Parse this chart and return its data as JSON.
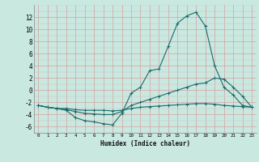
{
  "xlabel": "Humidex (Indice chaleur)",
  "bg_color": "#c8e8e0",
  "line_color": "#1a6b6b",
  "grid_major_color": "#e8b0b0",
  "grid_minor_color": "#e8d0d0",
  "xlim": [
    -0.5,
    23.5
  ],
  "ylim": [
    -7,
    14
  ],
  "yticks": [
    -6,
    -4,
    -2,
    0,
    2,
    4,
    6,
    8,
    10,
    12
  ],
  "xticks": [
    0,
    1,
    2,
    3,
    4,
    5,
    6,
    7,
    8,
    9,
    10,
    11,
    12,
    13,
    14,
    15,
    16,
    17,
    18,
    19,
    20,
    21,
    22,
    23
  ],
  "curve1_x": [
    0,
    1,
    2,
    3,
    4,
    5,
    6,
    7,
    8,
    9,
    10,
    11,
    12,
    13,
    14,
    15,
    16,
    17,
    18,
    19,
    20,
    21,
    22,
    23
  ],
  "curve1_y": [
    -2.5,
    -2.8,
    -3.0,
    -3.3,
    -4.5,
    -5.0,
    -5.2,
    -5.5,
    -5.7,
    -3.8,
    -0.5,
    0.5,
    3.2,
    3.5,
    7.2,
    11.0,
    12.2,
    12.8,
    10.5,
    4.0,
    0.5,
    -0.8,
    -2.5,
    -2.8
  ],
  "curve2_x": [
    0,
    1,
    2,
    3,
    4,
    5,
    6,
    7,
    8,
    9,
    10,
    11,
    12,
    13,
    14,
    15,
    16,
    17,
    18,
    19,
    20,
    21,
    22,
    23
  ],
  "curve2_y": [
    -2.5,
    -2.8,
    -3.0,
    -3.2,
    -3.5,
    -3.8,
    -3.9,
    -4.0,
    -4.0,
    -3.5,
    -2.5,
    -2.0,
    -1.5,
    -1.0,
    -0.5,
    0.0,
    0.5,
    1.0,
    1.2,
    2.0,
    1.8,
    0.5,
    -1.0,
    -2.8
  ],
  "curve3_x": [
    0,
    1,
    2,
    3,
    4,
    5,
    6,
    7,
    8,
    9,
    10,
    11,
    12,
    13,
    14,
    15,
    16,
    17,
    18,
    19,
    20,
    21,
    22,
    23
  ],
  "curve3_y": [
    -2.5,
    -2.8,
    -3.0,
    -3.0,
    -3.2,
    -3.3,
    -3.3,
    -3.3,
    -3.4,
    -3.3,
    -3.0,
    -2.8,
    -2.7,
    -2.6,
    -2.5,
    -2.4,
    -2.3,
    -2.2,
    -2.2,
    -2.3,
    -2.5,
    -2.6,
    -2.7,
    -2.8
  ],
  "xlabel_fontsize": 5.5,
  "ytick_fontsize": 5.5,
  "xtick_fontsize": 4.2
}
